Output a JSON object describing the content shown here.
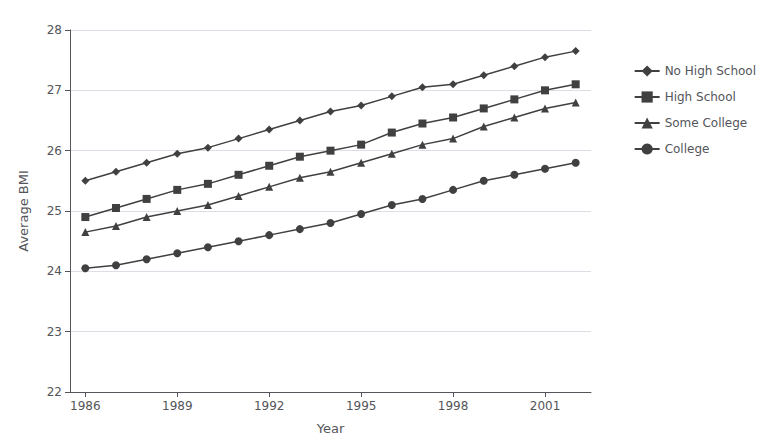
{
  "chart_data": {
    "type": "line",
    "x": [
      1986,
      1987,
      1988,
      1989,
      1990,
      1991,
      1992,
      1993,
      1994,
      1995,
      1996,
      1997,
      1998,
      1999,
      2000,
      2001,
      2002
    ],
    "series": [
      {
        "name": "No High School",
        "color": "#404040",
        "marker": "diamond",
        "values": [
          25.5,
          25.65,
          25.8,
          25.95,
          26.05,
          26.2,
          26.35,
          26.5,
          26.65,
          26.75,
          26.9,
          27.05,
          27.1,
          27.25,
          27.4,
          27.55,
          27.65
        ]
      },
      {
        "name": "High School",
        "color": "#404040",
        "marker": "square",
        "values": [
          24.9,
          25.05,
          25.2,
          25.35,
          25.45,
          25.6,
          25.75,
          25.9,
          26.0,
          26.1,
          26.3,
          26.45,
          26.55,
          26.7,
          26.85,
          27.0,
          27.1
        ]
      },
      {
        "name": "Some College",
        "color": "#404040",
        "marker": "triangle",
        "values": [
          24.65,
          24.75,
          24.9,
          25.0,
          25.1,
          25.25,
          25.4,
          25.55,
          25.65,
          25.8,
          25.95,
          26.1,
          26.2,
          26.4,
          26.55,
          26.7,
          26.8
        ]
      },
      {
        "name": "College",
        "color": "#404040",
        "marker": "circle",
        "values": [
          24.05,
          24.1,
          24.2,
          24.3,
          24.4,
          24.5,
          24.6,
          24.7,
          24.8,
          24.95,
          25.1,
          25.2,
          25.35,
          25.5,
          25.6,
          25.7,
          25.8
        ]
      }
    ],
    "x_label": "Year",
    "y_label": "Average BMI",
    "xlim": [
      1985.5,
      2002.5
    ],
    "xticks": [
      1986,
      1989,
      1992,
      1995,
      1998,
      2001
    ],
    "ylim": [
      22,
      28
    ],
    "yticks": [
      22,
      23,
      24,
      25,
      26,
      27,
      28
    ],
    "grid": true,
    "legend": "right"
  }
}
